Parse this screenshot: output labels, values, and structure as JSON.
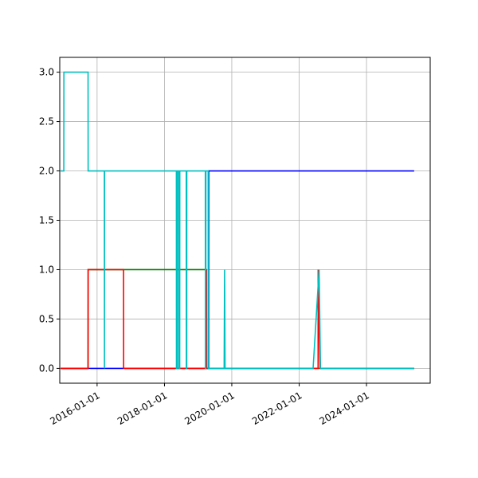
{
  "chart_data": {
    "type": "line",
    "title": "",
    "xlabel": "",
    "ylabel": "",
    "grid": true,
    "xlim": [
      "2014-11-22",
      "2025-11-22"
    ],
    "ylim": [
      -0.15,
      3.15
    ],
    "x_ticks": [
      "2016-01-01",
      "2018-01-01",
      "2020-01-01",
      "2022-01-01",
      "2024-01-01"
    ],
    "y_ticks": [
      0.0,
      0.5,
      1.0,
      1.5,
      2.0,
      2.5,
      3.0
    ],
    "y_tick_labels": [
      "0.0",
      "0.5",
      "1.0",
      "1.5",
      "2.0",
      "2.5",
      "3.0"
    ],
    "series": [
      {
        "color": "#0000ff",
        "points": [
          [
            "2014-12-01",
            0
          ],
          [
            "2019-04-25",
            0
          ],
          [
            "2019-04-26",
            2
          ],
          [
            "2025-06-01",
            2
          ]
        ]
      },
      {
        "color": "#008000",
        "points": [
          [
            "2014-12-01",
            0
          ],
          [
            "2015-09-25",
            0
          ],
          [
            "2015-09-26",
            1
          ],
          [
            "2016-10-15",
            1
          ],
          [
            "2019-04-01",
            1
          ],
          [
            "2019-04-02",
            0
          ],
          [
            "2025-06-01",
            0
          ]
        ]
      },
      {
        "color": "#ff0000",
        "points": [
          [
            "2014-12-01",
            0
          ],
          [
            "2015-09-25",
            0
          ],
          [
            "2015-09-26",
            1
          ],
          [
            "2016-10-14",
            1
          ],
          [
            "2016-10-15",
            0
          ],
          [
            "2019-04-01",
            0
          ],
          [
            "2019-04-02",
            1
          ],
          [
            "2019-04-03",
            0
          ],
          [
            "2022-07-25",
            0
          ],
          [
            "2022-07-26",
            1
          ],
          [
            "2022-08-15",
            0
          ],
          [
            "2025-06-01",
            0
          ]
        ]
      },
      {
        "color": "#00bfbf",
        "points": [
          [
            "2014-12-01",
            2
          ],
          [
            "2015-01-05",
            2
          ],
          [
            "2015-01-06",
            3
          ],
          [
            "2015-09-25",
            3
          ],
          [
            "2015-09-26",
            2
          ],
          [
            "2016-03-20",
            2
          ],
          [
            "2016-03-21",
            0
          ],
          [
            "2016-03-22",
            2
          ],
          [
            "2018-05-10",
            2
          ],
          [
            "2018-05-11",
            0
          ],
          [
            "2018-05-20",
            0
          ],
          [
            "2018-05-21",
            2
          ],
          [
            "2018-06-05",
            2
          ],
          [
            "2018-06-06",
            0
          ],
          [
            "2018-06-15",
            0
          ],
          [
            "2018-06-16",
            2
          ],
          [
            "2018-08-25",
            2
          ],
          [
            "2018-08-26",
            0
          ],
          [
            "2018-08-30",
            0
          ],
          [
            "2018-08-31",
            2
          ],
          [
            "2019-03-20",
            2
          ],
          [
            "2019-03-21",
            0
          ],
          [
            "2019-03-25",
            0
          ],
          [
            "2019-03-26",
            2
          ],
          [
            "2019-04-20",
            2
          ],
          [
            "2019-04-21",
            0
          ],
          [
            "2019-10-10",
            0
          ],
          [
            "2019-10-15",
            1
          ],
          [
            "2019-10-20",
            0
          ],
          [
            "2022-06-01",
            0
          ],
          [
            "2022-08-05",
            1
          ],
          [
            "2022-08-20",
            0
          ],
          [
            "2025-06-01",
            0
          ]
        ]
      }
    ]
  }
}
